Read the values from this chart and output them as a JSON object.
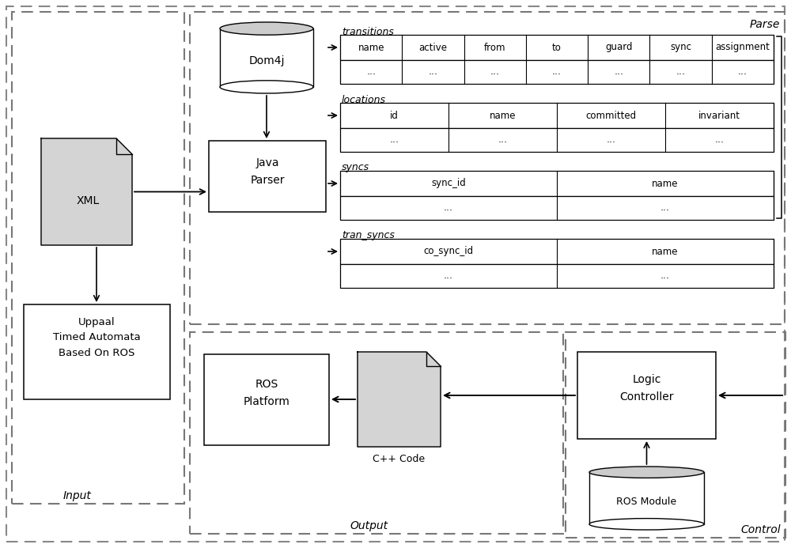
{
  "bg_color": "#ffffff",
  "dashed_color": "#666666",
  "box_fill": "#ffffff",
  "file_fill_xml": "#d8d8d8",
  "file_fill_cpp": "#d8d8d8",
  "cyl_top_fill": "#cccccc",
  "regions": {
    "input_label": "Input",
    "parse_label": "Parse",
    "output_label": "Output",
    "control_label": "Control"
  },
  "transitions_cols": [
    "name",
    "active",
    "from",
    "to",
    "guard",
    "sync",
    "assignment"
  ],
  "locations_cols": [
    "id",
    "name",
    "committed",
    "invariant"
  ],
  "syncs_cols": [
    "sync_id",
    "name"
  ],
  "tran_syncs_cols": [
    "co_sync_id",
    "name"
  ],
  "dots": "..."
}
